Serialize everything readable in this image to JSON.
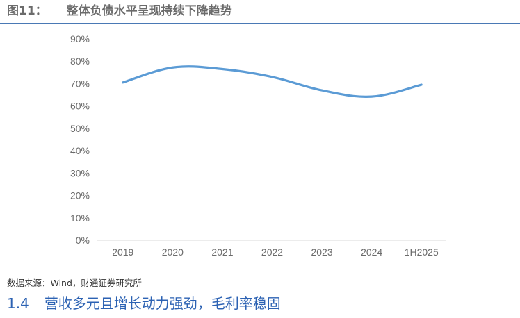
{
  "figure": {
    "number": "图11：",
    "title": "整体负债水平呈现持续下降趋势"
  },
  "chart_data": {
    "type": "line",
    "categories": [
      "2019",
      "2020",
      "2021",
      "2022",
      "2023",
      "2024",
      "1H2025"
    ],
    "series": [
      {
        "values": [
          70.5,
          77.2,
          76.5,
          73.0,
          67.0,
          64.2,
          69.5
        ]
      }
    ],
    "y_ticks": [
      "0%",
      "10%",
      "20%",
      "30%",
      "40%",
      "50%",
      "60%",
      "70%",
      "80%",
      "90%"
    ],
    "ylim": [
      0,
      90
    ],
    "title": "",
    "xlabel": "",
    "ylabel": "",
    "grid": false,
    "line_color": "#5b9bd5"
  },
  "source_note": "数据来源：Wind，财通证券研究所",
  "section": {
    "number": "1.4",
    "title": "营收多元且增长动力强劲，毛利率稳固"
  },
  "colors": {
    "accent": "#4a79b5",
    "heading": "#2c62b3",
    "series_line": "#5b9bd5"
  }
}
